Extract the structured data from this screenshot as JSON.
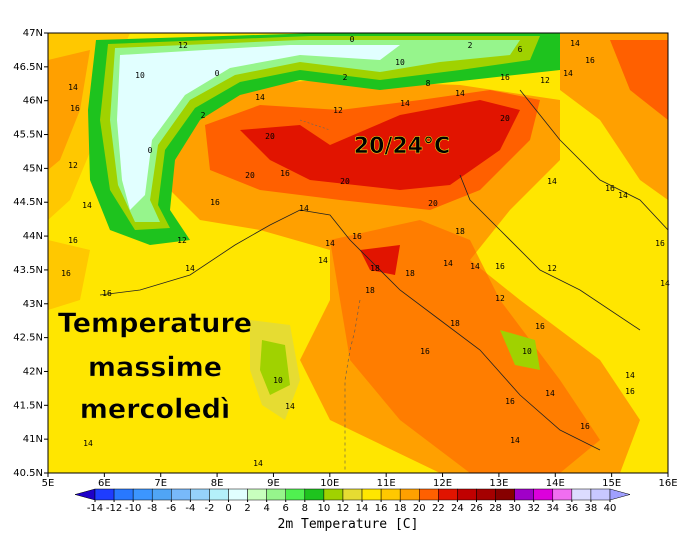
{
  "map": {
    "annotation": "20/24°C",
    "overlay_title": [
      "Temperature",
      "massime",
      "mercoledì"
    ],
    "lat_ticks": [
      {
        "value": 47,
        "label": "47N"
      },
      {
        "value": 46.5,
        "label": "46.5N"
      },
      {
        "value": 46,
        "label": "46N"
      },
      {
        "value": 45.5,
        "label": "45.5N"
      },
      {
        "value": 45,
        "label": "45N"
      },
      {
        "value": 44.5,
        "label": "44.5N"
      },
      {
        "value": 44,
        "label": "44N"
      },
      {
        "value": 43.5,
        "label": "43.5N"
      },
      {
        "value": 43,
        "label": "43N"
      },
      {
        "value": 42.5,
        "label": "42.5N"
      },
      {
        "value": 42,
        "label": "42N"
      },
      {
        "value": 41.5,
        "label": "41.5N"
      },
      {
        "value": 41,
        "label": "41N"
      },
      {
        "value": 40.5,
        "label": "40.5N"
      }
    ],
    "lon_ticks": [
      {
        "value": 5,
        "label": "5E"
      },
      {
        "value": 6,
        "label": "6E"
      },
      {
        "value": 7,
        "label": "7E"
      },
      {
        "value": 8,
        "label": "8E"
      },
      {
        "value": 9,
        "label": "9E"
      },
      {
        "value": 10,
        "label": "10E"
      },
      {
        "value": 11,
        "label": "11E"
      },
      {
        "value": 12,
        "label": "12E"
      },
      {
        "value": 13,
        "label": "13E"
      },
      {
        "value": 14,
        "label": "14E"
      },
      {
        "value": 15,
        "label": "15E"
      },
      {
        "value": 16,
        "label": "16E"
      }
    ],
    "latlim": [
      40.5,
      47
    ],
    "lonlim": [
      5,
      16
    ],
    "contour_labels": [
      12,
      0,
      10,
      2,
      6,
      14,
      16,
      10,
      14,
      0,
      2,
      8,
      16,
      12,
      14,
      16,
      2,
      14,
      12,
      14,
      14,
      0,
      20,
      20,
      12,
      20,
      16,
      20,
      20,
      14,
      16,
      14,
      16,
      12,
      14,
      16,
      18,
      16,
      14,
      14,
      18,
      18,
      14,
      14,
      16,
      12,
      16,
      18,
      12,
      18,
      16,
      16,
      10,
      10,
      14,
      14,
      16,
      16,
      14,
      16,
      14,
      14,
      14,
      14,
      14,
      16,
      14,
      16
    ],
    "colorbar": {
      "label": "2m Temperature [C]",
      "ticks": [
        -14,
        -12,
        -10,
        -8,
        -6,
        -4,
        -2,
        0,
        2,
        4,
        6,
        8,
        10,
        12,
        14,
        16,
        18,
        20,
        22,
        24,
        26,
        28,
        30,
        32,
        34,
        36,
        38,
        40
      ],
      "colors": [
        "#1e00c8",
        "#1e3cff",
        "#2878ff",
        "#3c96ff",
        "#50a5f5",
        "#78b9fa",
        "#96d2fa",
        "#b4f0fa",
        "#e1ffff",
        "#c8ffbe",
        "#96f58c",
        "#50f050",
        "#1ec31e",
        "#a0d200",
        "#e6dc32",
        "#ffe600",
        "#ffc800",
        "#ffa000",
        "#ff6000",
        "#e11400",
        "#c00000",
        "#a50000",
        "#870000",
        "#a000c8",
        "#dc00dc",
        "#f06ef0",
        "#dcdcff",
        "#c8c8ff",
        "#a0a0ff"
      ]
    }
  }
}
